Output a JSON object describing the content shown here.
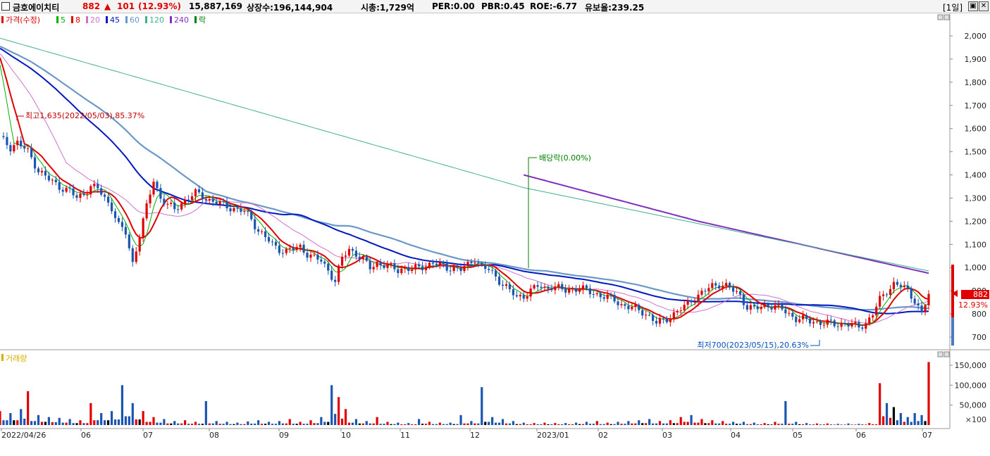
{
  "header": {
    "name": "금호에이치티",
    "price": "882",
    "change_arrow": "▲",
    "change": "101",
    "change_pct": "(12.93%)",
    "volume": "15,887,169",
    "shares": "상장수:196,144,904",
    "market_cap": "시총:1,729억",
    "per": "PER:0.00",
    "pbr": "PBR:0.45",
    "roe": "ROE:-6.77",
    "reserve": "유보율:239.25",
    "period": "[1일]"
  },
  "legend": {
    "price_label": "가격(수정)",
    "ma_items": [
      {
        "label": "5",
        "color": "#00b000"
      },
      {
        "label": "8",
        "color": "#e00000"
      },
      {
        "label": "20",
        "color": "#d070d0"
      },
      {
        "label": "45",
        "color": "#0018c0"
      },
      {
        "label": "60",
        "color": "#6a98c8"
      },
      {
        "label": "120",
        "color": "#40b090"
      },
      {
        "label": "240",
        "color": "#8030c0"
      }
    ],
    "dividend_legend": "락",
    "volume_label": "거래량"
  },
  "annotations": {
    "high": "최고1,635(2022/05/03),85.37%",
    "low": "최저700(2023/05/15),20.63%",
    "dividend": "배당락(0.00%)"
  },
  "price_tag": {
    "value": "882",
    "pct": "12.93%"
  },
  "volume_unit": "×100",
  "chart_data": {
    "type": "candlestick",
    "y_ticks": [
      "2,000",
      "1,900",
      "1,800",
      "1,700",
      "1,600",
      "1,500",
      "1,400",
      "1,300",
      "1,200",
      "1,100",
      "1,000",
      "900",
      "800",
      "700"
    ],
    "ylim": [
      650,
      2080
    ],
    "volume_ticks": [
      "150,000",
      "100,000",
      "50,000"
    ],
    "volume_ylim": [
      0,
      180000
    ],
    "x_ticks": [
      "2022/04/26",
      "06",
      "07",
      "08",
      "09",
      "10",
      "11",
      "12",
      "2023/01",
      "02",
      "03",
      "04",
      "05",
      "06",
      "07"
    ],
    "last_price": 882,
    "high": {
      "value": 1635,
      "date": "2022/05/03"
    },
    "low": {
      "value": 700,
      "date": "2023/05/15"
    },
    "price_path": [
      [
        0,
        1560
      ],
      [
        3,
        1520
      ],
      [
        5,
        1540
      ],
      [
        8,
        1500
      ],
      [
        11,
        1420
      ],
      [
        14,
        1380
      ],
      [
        17,
        1350
      ],
      [
        20,
        1330
      ],
      [
        22,
        1300
      ],
      [
        24,
        1320
      ],
      [
        26,
        1350
      ],
      [
        28,
        1340
      ],
      [
        30,
        1300
      ],
      [
        32,
        1260
      ],
      [
        34,
        1180
      ],
      [
        36,
        1150
      ],
      [
        38,
        1020
      ],
      [
        40,
        1140
      ],
      [
        42,
        1260
      ],
      [
        44,
        1380
      ],
      [
        46,
        1300
      ],
      [
        48,
        1270
      ],
      [
        50,
        1250
      ],
      [
        52,
        1280
      ],
      [
        54,
        1300
      ],
      [
        56,
        1320
      ],
      [
        58,
        1310
      ],
      [
        60,
        1290
      ],
      [
        62,
        1280
      ],
      [
        64,
        1270
      ],
      [
        66,
        1260
      ],
      [
        68,
        1250
      ],
      [
        70,
        1240
      ],
      [
        72,
        1210
      ],
      [
        74,
        1160
      ],
      [
        76,
        1130
      ],
      [
        78,
        1100
      ],
      [
        80,
        1080
      ],
      [
        82,
        1070
      ],
      [
        84,
        1080
      ],
      [
        86,
        1090
      ],
      [
        88,
        1060
      ],
      [
        90,
        1040
      ],
      [
        92,
        1030
      ],
      [
        94,
        990
      ],
      [
        96,
        940
      ],
      [
        98,
        1040
      ],
      [
        100,
        1080
      ],
      [
        102,
        1060
      ],
      [
        104,
        1030
      ],
      [
        106,
        1000
      ],
      [
        108,
        1020
      ],
      [
        110,
        1010
      ],
      [
        112,
        1000
      ],
      [
        114,
        990
      ],
      [
        116,
        1000
      ],
      [
        118,
        990
      ],
      [
        120,
        1000
      ],
      [
        122,
        1010
      ],
      [
        124,
        1020
      ],
      [
        126,
        1010
      ],
      [
        128,
        1000
      ],
      [
        130,
        1000
      ],
      [
        132,
        990
      ],
      [
        134,
        1010
      ],
      [
        136,
        1040
      ],
      [
        138,
        1000
      ],
      [
        140,
        990
      ],
      [
        142,
        960
      ],
      [
        144,
        930
      ],
      [
        146,
        900
      ],
      [
        148,
        870
      ],
      [
        150,
        880
      ],
      [
        152,
        900
      ],
      [
        154,
        920
      ],
      [
        156,
        910
      ],
      [
        158,
        920
      ],
      [
        160,
        910
      ],
      [
        162,
        900
      ],
      [
        164,
        910
      ],
      [
        166,
        910
      ],
      [
        168,
        900
      ],
      [
        170,
        890
      ],
      [
        172,
        880
      ],
      [
        174,
        870
      ],
      [
        176,
        860
      ],
      [
        178,
        840
      ],
      [
        180,
        830
      ],
      [
        182,
        820
      ],
      [
        184,
        810
      ],
      [
        186,
        790
      ],
      [
        188,
        760
      ],
      [
        190,
        770
      ],
      [
        192,
        790
      ],
      [
        194,
        810
      ],
      [
        196,
        830
      ],
      [
        198,
        860
      ],
      [
        200,
        880
      ],
      [
        202,
        900
      ],
      [
        204,
        920
      ],
      [
        206,
        930
      ],
      [
        208,
        920
      ],
      [
        210,
        900
      ],
      [
        212,
        880
      ],
      [
        214,
        830
      ],
      [
        216,
        820
      ],
      [
        218,
        830
      ],
      [
        220,
        840
      ],
      [
        222,
        830
      ],
      [
        224,
        820
      ],
      [
        226,
        800
      ],
      [
        228,
        780
      ],
      [
        230,
        775
      ],
      [
        232,
        770
      ],
      [
        234,
        765
      ],
      [
        236,
        760
      ],
      [
        238,
        758
      ],
      [
        240,
        755
      ],
      [
        242,
        760
      ],
      [
        244,
        750
      ],
      [
        246,
        745
      ],
      [
        248,
        760
      ],
      [
        250,
        800
      ],
      [
        252,
        860
      ],
      [
        254,
        900
      ],
      [
        256,
        930
      ],
      [
        258,
        920
      ],
      [
        260,
        900
      ],
      [
        262,
        860
      ],
      [
        264,
        800
      ],
      [
        266,
        882
      ]
    ],
    "volume_bars": [
      [
        0,
        35000
      ],
      [
        3,
        30000
      ],
      [
        6,
        40000
      ],
      [
        8,
        85000
      ],
      [
        11,
        25000
      ],
      [
        14,
        20000
      ],
      [
        17,
        18000
      ],
      [
        20,
        15000
      ],
      [
        23,
        12000
      ],
      [
        26,
        55000
      ],
      [
        29,
        30000
      ],
      [
        32,
        35000
      ],
      [
        35,
        100000
      ],
      [
        38,
        55000
      ],
      [
        41,
        35000
      ],
      [
        44,
        20000
      ],
      [
        47,
        15000
      ],
      [
        50,
        10000
      ],
      [
        53,
        12000
      ],
      [
        56,
        8000
      ],
      [
        59,
        60000
      ],
      [
        62,
        10000
      ],
      [
        65,
        8000
      ],
      [
        68,
        6000
      ],
      [
        71,
        9000
      ],
      [
        74,
        12000
      ],
      [
        77,
        8000
      ],
      [
        80,
        10000
      ],
      [
        83,
        15000
      ],
      [
        86,
        8000
      ],
      [
        89,
        12000
      ],
      [
        92,
        20000
      ],
      [
        95,
        100000
      ],
      [
        97,
        70000
      ],
      [
        99,
        40000
      ],
      [
        102,
        15000
      ],
      [
        105,
        10000
      ],
      [
        108,
        20000
      ],
      [
        111,
        8000
      ],
      [
        114,
        6000
      ],
      [
        117,
        5000
      ],
      [
        120,
        15000
      ],
      [
        123,
        8000
      ],
      [
        126,
        6000
      ],
      [
        129,
        6000
      ],
      [
        132,
        25000
      ],
      [
        135,
        10000
      ],
      [
        138,
        95000
      ],
      [
        141,
        20000
      ],
      [
        144,
        15000
      ],
      [
        147,
        10000
      ],
      [
        150,
        6000
      ],
      [
        153,
        5000
      ],
      [
        156,
        6000
      ],
      [
        159,
        5000
      ],
      [
        162,
        5000
      ],
      [
        165,
        6000
      ],
      [
        168,
        8000
      ],
      [
        171,
        10000
      ],
      [
        174,
        6000
      ],
      [
        177,
        8000
      ],
      [
        180,
        10000
      ],
      [
        183,
        12000
      ],
      [
        186,
        15000
      ],
      [
        189,
        10000
      ],
      [
        192,
        12000
      ],
      [
        195,
        20000
      ],
      [
        198,
        25000
      ],
      [
        201,
        15000
      ],
      [
        204,
        12000
      ],
      [
        207,
        10000
      ],
      [
        210,
        8000
      ],
      [
        213,
        8000
      ],
      [
        216,
        6000
      ],
      [
        219,
        5000
      ],
      [
        222,
        8000
      ],
      [
        225,
        60000
      ],
      [
        228,
        8000
      ],
      [
        231,
        5000
      ],
      [
        234,
        4000
      ],
      [
        237,
        4000
      ],
      [
        240,
        3000
      ],
      [
        243,
        4000
      ],
      [
        246,
        3000
      ],
      [
        249,
        5000
      ],
      [
        252,
        105000
      ],
      [
        254,
        55000
      ],
      [
        256,
        45000
      ],
      [
        258,
        30000
      ],
      [
        260,
        20000
      ],
      [
        262,
        30000
      ],
      [
        264,
        25000
      ],
      [
        266,
        158000
      ]
    ]
  }
}
